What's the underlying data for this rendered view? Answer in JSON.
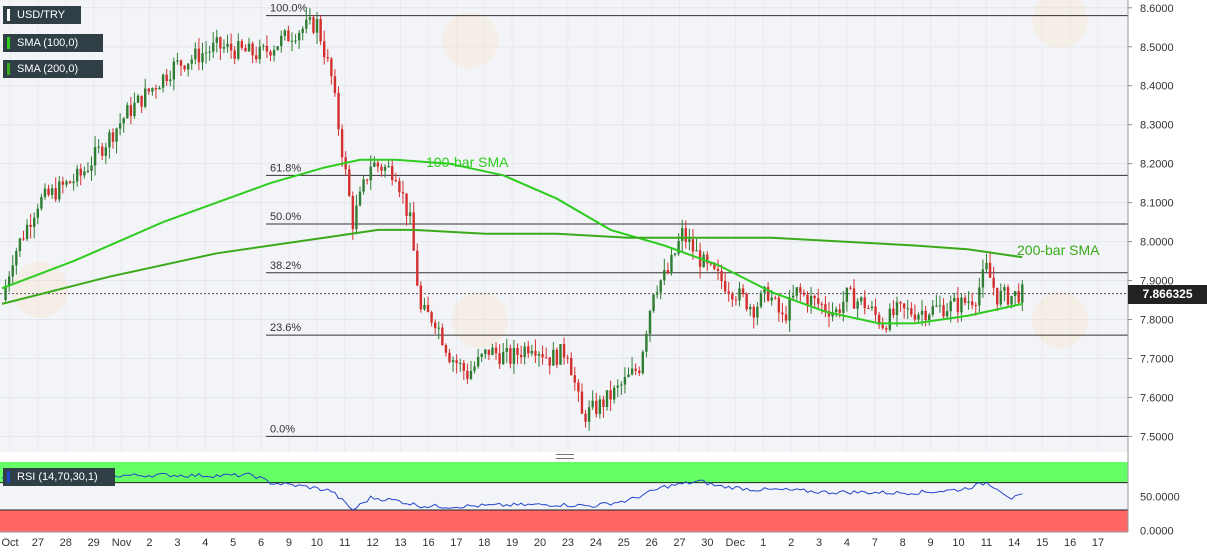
{
  "symbol": "USD/TRY",
  "legend": {
    "sma100": "SMA (100,0)",
    "sma200": "SMA (200,0)",
    "rsi": "RSI (14,70,30,1)"
  },
  "current_price": "7.866325",
  "colors": {
    "up": "#2e7d32",
    "down": "#d32f2f",
    "sma": "#2ecc1f",
    "sma200": "#3aaa1a",
    "rsi_line": "#2244cc",
    "rsi_over": "#66ff66",
    "rsi_under": "#ff6666",
    "legend_bg": "#2f3f45",
    "fib": "#333333"
  },
  "chart_data": [
    {
      "type": "candlestick",
      "title": "USD/TRY",
      "ylim": [
        7.46,
        8.62
      ],
      "y_ticks": [
        "8.6000",
        "8.5000",
        "8.4000",
        "8.3000",
        "8.2000",
        "8.1000",
        "8.0000",
        "7.9000",
        "7.8000",
        "7.7000",
        "7.6000",
        "7.5000"
      ],
      "x_ticks": [
        "Oct",
        "27",
        "28",
        "29",
        "Nov",
        "2",
        "3",
        "4",
        "5",
        "6",
        "9",
        "10",
        "11",
        "12",
        "13",
        "16",
        "17",
        "18",
        "19",
        "20",
        "23",
        "24",
        "25",
        "26",
        "27",
        "30",
        "Dec",
        "1",
        "2",
        "3",
        "4",
        "7",
        "8",
        "9",
        "10",
        "11",
        "14",
        "15",
        "16",
        "17"
      ],
      "fib_levels": [
        {
          "label": "100.0%",
          "value": 8.58
        },
        {
          "label": "61.8%",
          "value": 8.17
        },
        {
          "label": "50.0%",
          "value": 8.045
        },
        {
          "label": "38.2%",
          "value": 7.92
        },
        {
          "label": "23.6%",
          "value": 7.76
        },
        {
          "label": "0.0%",
          "value": 7.5
        }
      ],
      "current_price": 7.866325,
      "annotations": [
        {
          "text": "100-bar SMA",
          "series": "SMA (100,0)"
        },
        {
          "text": "200-bar SMA",
          "series": "SMA (200,0)"
        }
      ],
      "close_path": [
        [
          0,
          7.85
        ],
        [
          3,
          7.96
        ],
        [
          10,
          8.1
        ],
        [
          22,
          8.17
        ],
        [
          35,
          8.33
        ],
        [
          48,
          8.45
        ],
        [
          60,
          8.5
        ],
        [
          72,
          8.48
        ],
        [
          82,
          8.54
        ],
        [
          88,
          8.56
        ],
        [
          92,
          8.42
        ],
        [
          98,
          8.05
        ],
        [
          103,
          8.2
        ],
        [
          110,
          8.18
        ],
        [
          114,
          8.05
        ],
        [
          117,
          7.82
        ],
        [
          121,
          7.8
        ],
        [
          125,
          7.71
        ],
        [
          130,
          7.66
        ],
        [
          136,
          7.72
        ],
        [
          142,
          7.7
        ],
        [
          148,
          7.74
        ],
        [
          153,
          7.7
        ],
        [
          158,
          7.72
        ],
        [
          162,
          7.55
        ],
        [
          167,
          7.58
        ],
        [
          172,
          7.62
        ],
        [
          178,
          7.68
        ],
        [
          182,
          7.88
        ],
        [
          186,
          7.92
        ],
        [
          190,
          8.02
        ],
        [
          193,
          7.98
        ],
        [
          197,
          7.93
        ],
        [
          201,
          7.9
        ],
        [
          206,
          7.86
        ],
        [
          210,
          7.83
        ],
        [
          214,
          7.87
        ],
        [
          218,
          7.8
        ],
        [
          222,
          7.87
        ],
        [
          228,
          7.84
        ],
        [
          233,
          7.82
        ],
        [
          236,
          7.86
        ],
        [
          241,
          7.84
        ],
        [
          246,
          7.79
        ],
        [
          250,
          7.82
        ],
        [
          256,
          7.82
        ],
        [
          262,
          7.83
        ],
        [
          268,
          7.84
        ],
        [
          272,
          7.86
        ],
        [
          275,
          7.93
        ],
        [
          278,
          7.86
        ],
        [
          282,
          7.86
        ],
        [
          284,
          7.866
        ]
      ],
      "series": [
        {
          "name": "SMA (100,0)",
          "points": [
            [
              0,
              7.88
            ],
            [
              20,
              7.95
            ],
            [
              45,
              8.05
            ],
            [
              75,
              8.15
            ],
            [
              90,
              8.19
            ],
            [
              100,
              8.21
            ],
            [
              110,
              8.21
            ],
            [
              125,
              8.2
            ],
            [
              140,
              8.17
            ],
            [
              155,
              8.11
            ],
            [
              170,
              8.03
            ],
            [
              185,
              7.99
            ],
            [
              200,
              7.94
            ],
            [
              215,
              7.87
            ],
            [
              230,
              7.82
            ],
            [
              245,
              7.79
            ],
            [
              255,
              7.79
            ],
            [
              270,
              7.81
            ],
            [
              285,
              7.84
            ]
          ]
        },
        {
          "name": "SMA (200,0)",
          "points": [
            [
              0,
              7.84
            ],
            [
              30,
              7.91
            ],
            [
              60,
              7.97
            ],
            [
              90,
              8.01
            ],
            [
              105,
              8.03
            ],
            [
              115,
              8.03
            ],
            [
              135,
              8.02
            ],
            [
              155,
              8.02
            ],
            [
              175,
              8.01
            ],
            [
              195,
              8.01
            ],
            [
              215,
              8.01
            ],
            [
              235,
              8.0
            ],
            [
              255,
              7.99
            ],
            [
              270,
              7.98
            ],
            [
              285,
              7.96
            ]
          ]
        }
      ]
    },
    {
      "type": "line",
      "title": "RSI (14,70,30,1)",
      "ylim": [
        -2,
        100
      ],
      "y_ticks": [
        "50.0000",
        "0.0000"
      ],
      "overbought": 70,
      "oversold": 30,
      "series": [
        {
          "name": "RSI (14,70,30,1)",
          "points": [
            [
              0,
              75
            ],
            [
              15,
              79
            ],
            [
              30,
              80
            ],
            [
              45,
              81
            ],
            [
              60,
              80
            ],
            [
              70,
              81
            ],
            [
              75,
              70
            ],
            [
              85,
              64
            ],
            [
              92,
              58
            ],
            [
              98,
              30
            ],
            [
              103,
              48
            ],
            [
              110,
              44
            ],
            [
              117,
              36
            ],
            [
              125,
              35
            ],
            [
              140,
              37
            ],
            [
              155,
              38
            ],
            [
              165,
              36
            ],
            [
              175,
              44
            ],
            [
              185,
              64
            ],
            [
              195,
              72
            ],
            [
              200,
              65
            ],
            [
              210,
              60
            ],
            [
              220,
              59
            ],
            [
              230,
              56
            ],
            [
              240,
              56
            ],
            [
              250,
              55
            ],
            [
              258,
              56
            ],
            [
              268,
              60
            ],
            [
              275,
              70
            ],
            [
              278,
              62
            ],
            [
              282,
              47
            ],
            [
              286,
              52
            ]
          ]
        }
      ]
    }
  ]
}
